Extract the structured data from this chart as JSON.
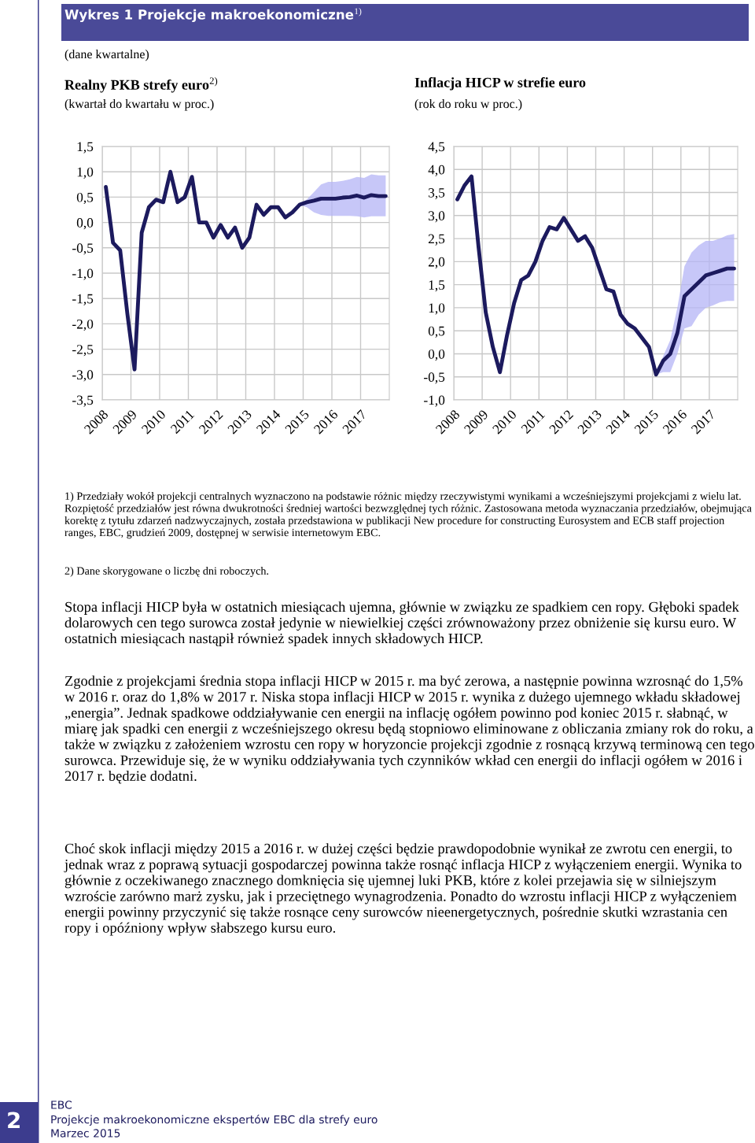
{
  "chart_data": [
    {
      "type": "line",
      "title": "Realny PKB strefy euro$^{2)}$",
      "subtitle": "(kwartał do kwartału w proc.)",
      "x": [
        2008.125,
        2008.375,
        2008.625,
        2008.875,
        2009.125,
        2009.375,
        2009.625,
        2009.875,
        2010.125,
        2010.375,
        2010.625,
        2010.875,
        2011.125,
        2011.375,
        2011.625,
        2011.875,
        2012.125,
        2012.375,
        2012.625,
        2012.875,
        2013.125,
        2013.375,
        2013.625,
        2013.875,
        2014.125,
        2014.375,
        2014.625,
        2014.875,
        2015.125,
        2015.375,
        2015.625,
        2015.875,
        2016.125,
        2016.375,
        2016.625,
        2016.875,
        2017.125,
        2017.375,
        2017.625,
        2017.875
      ],
      "series": [
        {
          "color": "#1c1a5e",
          "values": [
            0.7,
            -0.4,
            -0.55,
            -1.8,
            -2.9,
            -0.2,
            0.3,
            0.45,
            0.4,
            1.0,
            0.4,
            0.5,
            0.9,
            0.0,
            0.0,
            -0.3,
            -0.05,
            -0.3,
            -0.1,
            -0.5,
            -0.3,
            0.35,
            0.15,
            0.3,
            0.3,
            0.1,
            0.2,
            0.35,
            0.4,
            0.43,
            0.47,
            0.47,
            0.47,
            0.49,
            0.5,
            0.53,
            0.49,
            0.54,
            0.52,
            0.52
          ],
          "lower": [
            null,
            null,
            null,
            null,
            null,
            null,
            null,
            null,
            null,
            null,
            null,
            null,
            null,
            null,
            null,
            null,
            null,
            null,
            null,
            null,
            null,
            null,
            null,
            null,
            null,
            null,
            null,
            0.35,
            0.3,
            0.2,
            0.15,
            0.13,
            0.13,
            0.13,
            0.13,
            0.12,
            0.1,
            0.12,
            0.12,
            0.12
          ],
          "upper": [
            null,
            null,
            null,
            null,
            null,
            null,
            null,
            null,
            null,
            null,
            null,
            null,
            null,
            null,
            null,
            null,
            null,
            null,
            null,
            null,
            null,
            null,
            null,
            null,
            null,
            null,
            null,
            0.35,
            0.45,
            0.6,
            0.75,
            0.8,
            0.8,
            0.82,
            0.85,
            0.9,
            0.88,
            0.95,
            0.93,
            0.93
          ]
        }
      ],
      "xlim": [
        2008,
        2018
      ],
      "xticks": [
        2008,
        2009,
        2010,
        2011,
        2012,
        2013,
        2014,
        2015,
        2016,
        2017
      ],
      "ylim": [
        -3.5,
        1.5
      ],
      "yticks": [
        {
          "value": -3.5,
          "label": "-3,5"
        },
        {
          "value": -3.0,
          "label": "-3,0"
        },
        {
          "value": -2.5,
          "label": "-2,5"
        },
        {
          "value": -2.0,
          "label": "-2,0"
        },
        {
          "value": -1.5,
          "label": "-1,5"
        },
        {
          "value": -1.0,
          "label": "-1,0"
        },
        {
          "value": -0.5,
          "label": "-0,5"
        },
        {
          "value": 0,
          "label": "0,0"
        },
        {
          "value": 0.5,
          "label": "0,5"
        },
        {
          "value": 1.0,
          "label": "1,0"
        },
        {
          "value": 1.5,
          "label": "1,5"
        }
      ],
      "grid": true,
      "annotations": [
        "Wykres 1 Projekcje makroekonomiczne$^{1)}$",
        "(dane kwartalne)",
        "1) Przedziały wokół projekcji centralnych wyznaczono na podstawie różnic między rzeczywistymi wynikami a wcześniejszymi projekcjami z wielu lat. Rozpiętość przedziałów jest równa dwukrotności średniej wartości bezwzględnej tych różnic. Zastosowana metoda wyznaczania przedziałów, obejmująca korektę z tytułu zdarzeń nadzwyczajnych, została przedstawiona w publikacji New procedure for constructing Eurosystem and ECB staff projection ranges, EBC, grudzień 2009, dostępnej w serwisie internetowym EBC.",
        "2) Dane skorygowane o liczbę dni roboczych.",
        "Stopa inflacji HICP była w ostatnich miesiącach ujemna, głównie w związku ze spadkiem cen ropy. Głęboki spadek dolarowych cen tego surowca został jedynie w niewielkiej części zrównoważony przez obniżenie się kursu euro. W ostatnich miesiącach nastąpił również spadek innych składowych HICP.",
        "Zgodnie z projekcjami średnia stopa inflacji HICP w 2015 r. ma być zerowa, a następnie powinna wzrosnąć do 1,5% w 2016 r. oraz do 1,8% w 2017 r. Niska stopa inflacji HICP w 2015 r. wynika z dużego ujemnego wkładu składowej „energia”. Jednak spadkowe oddziaływanie cen energii na inflację ogółem powinno pod koniec 2015 r. słabnąć, w miarę jak spadki cen energii z wcześniejszego okresu będą stopniowo eliminowane z obliczania zmiany rok do roku, a także w związku z założeniem wzrostu cen ropy w horyzoncie projekcji zgodnie z rosnącą krzywą terminową cen tego surowca. Przewiduje się, że w wyniku oddziaływania tych czynników wkład cen energii do inflacji ogółem w 2016 i 2017 r. będzie dodatni.",
        "Choć skok inflacji między 2015 a 2016 r. w dużej części będzie prawdopodobnie wynikał ze zwrotu cen energii, to jednak wraz z poprawą sytuacji gospodarczej powinna także rosnąć inflacja HICP z wyłączeniem energii. Wynika to głównie z oczekiwanego znacznego domknięcia się ujemnej luki PKB, które z kolei przejawia się w silniejszym wzroście zarówno marż zysku, jak i przeciętnego wynagrodzenia. Ponadto do wzrostu inflacji HICP z wyłączeniem energii powinny przyczynić się także rosnące ceny surowców nieenergetycznych, pośrednie skutki wzrastania cen ropy i opóźniony wpływ słabszego kursu euro.",
        "EBC",
        "Projekcje makroekonomiczne ekspertów EBC dla strefy euro",
        "Marzec 2015",
        "2"
      ]
    },
    {
      "type": "line",
      "title": "Inflacja HICP w strefie euro",
      "subtitle": "(rok do roku w proc.)",
      "x": [
        2008.125,
        2008.375,
        2008.625,
        2008.875,
        2009.125,
        2009.375,
        2009.625,
        2009.875,
        2010.125,
        2010.375,
        2010.625,
        2010.875,
        2011.125,
        2011.375,
        2011.625,
        2011.875,
        2012.125,
        2012.375,
        2012.625,
        2012.875,
        2013.125,
        2013.375,
        2013.625,
        2013.875,
        2014.125,
        2014.375,
        2014.625,
        2014.875,
        2015.125,
        2015.375,
        2015.625,
        2015.875,
        2016.125,
        2016.375,
        2016.625,
        2016.875,
        2017.125,
        2017.375,
        2017.625,
        2017.875
      ],
      "series": [
        {
          "color": "#1c1a5e",
          "values": [
            3.35,
            3.65,
            3.85,
            2.3,
            0.9,
            0.15,
            -0.4,
            0.4,
            1.1,
            1.6,
            1.7,
            2.0,
            2.45,
            2.75,
            2.7,
            2.95,
            2.7,
            2.45,
            2.55,
            2.3,
            1.85,
            1.4,
            1.35,
            0.85,
            0.65,
            0.55,
            0.35,
            0.15,
            -0.45,
            -0.15,
            0.0,
            0.45,
            1.25,
            1.4,
            1.55,
            1.7,
            1.75,
            1.8,
            1.85,
            1.85
          ],
          "lower": [
            null,
            null,
            null,
            null,
            null,
            null,
            null,
            null,
            null,
            null,
            null,
            null,
            null,
            null,
            null,
            null,
            null,
            null,
            null,
            null,
            null,
            null,
            null,
            null,
            null,
            null,
            null,
            null,
            -0.45,
            -0.4,
            -0.4,
            0.0,
            0.55,
            0.6,
            0.85,
            1.0,
            1.05,
            1.12,
            1.15,
            1.15
          ],
          "upper": [
            null,
            null,
            null,
            null,
            null,
            null,
            null,
            null,
            null,
            null,
            null,
            null,
            null,
            null,
            null,
            null,
            null,
            null,
            null,
            null,
            null,
            null,
            null,
            null,
            null,
            null,
            null,
            null,
            -0.45,
            -0.05,
            0.3,
            1.0,
            1.9,
            2.2,
            2.35,
            2.45,
            2.45,
            2.5,
            2.57,
            2.6
          ]
        }
      ],
      "xlim": [
        2008,
        2018
      ],
      "xticks": [
        2008,
        2009,
        2010,
        2011,
        2012,
        2013,
        2014,
        2015,
        2016,
        2017
      ],
      "ylim": [
        -1.0,
        4.5
      ],
      "yticks": [
        {
          "value": -1.0,
          "label": "-1,0"
        },
        {
          "value": -0.5,
          "label": "-0,5"
        },
        {
          "value": 0,
          "label": "0,0"
        },
        {
          "value": 0.5,
          "label": "0,5"
        },
        {
          "value": 1.0,
          "label": "1,0"
        },
        {
          "value": 1.5,
          "label": "1,5"
        },
        {
          "value": 2.0,
          "label": "2,0"
        },
        {
          "value": 2.5,
          "label": "2,5"
        },
        {
          "value": 3.0,
          "label": "3,0"
        },
        {
          "value": 3.5,
          "label": "3,5"
        },
        {
          "value": 4.0,
          "label": "4,0"
        },
        {
          "value": 4.5,
          "label": "4,5"
        }
      ],
      "grid": true
    }
  ]
}
